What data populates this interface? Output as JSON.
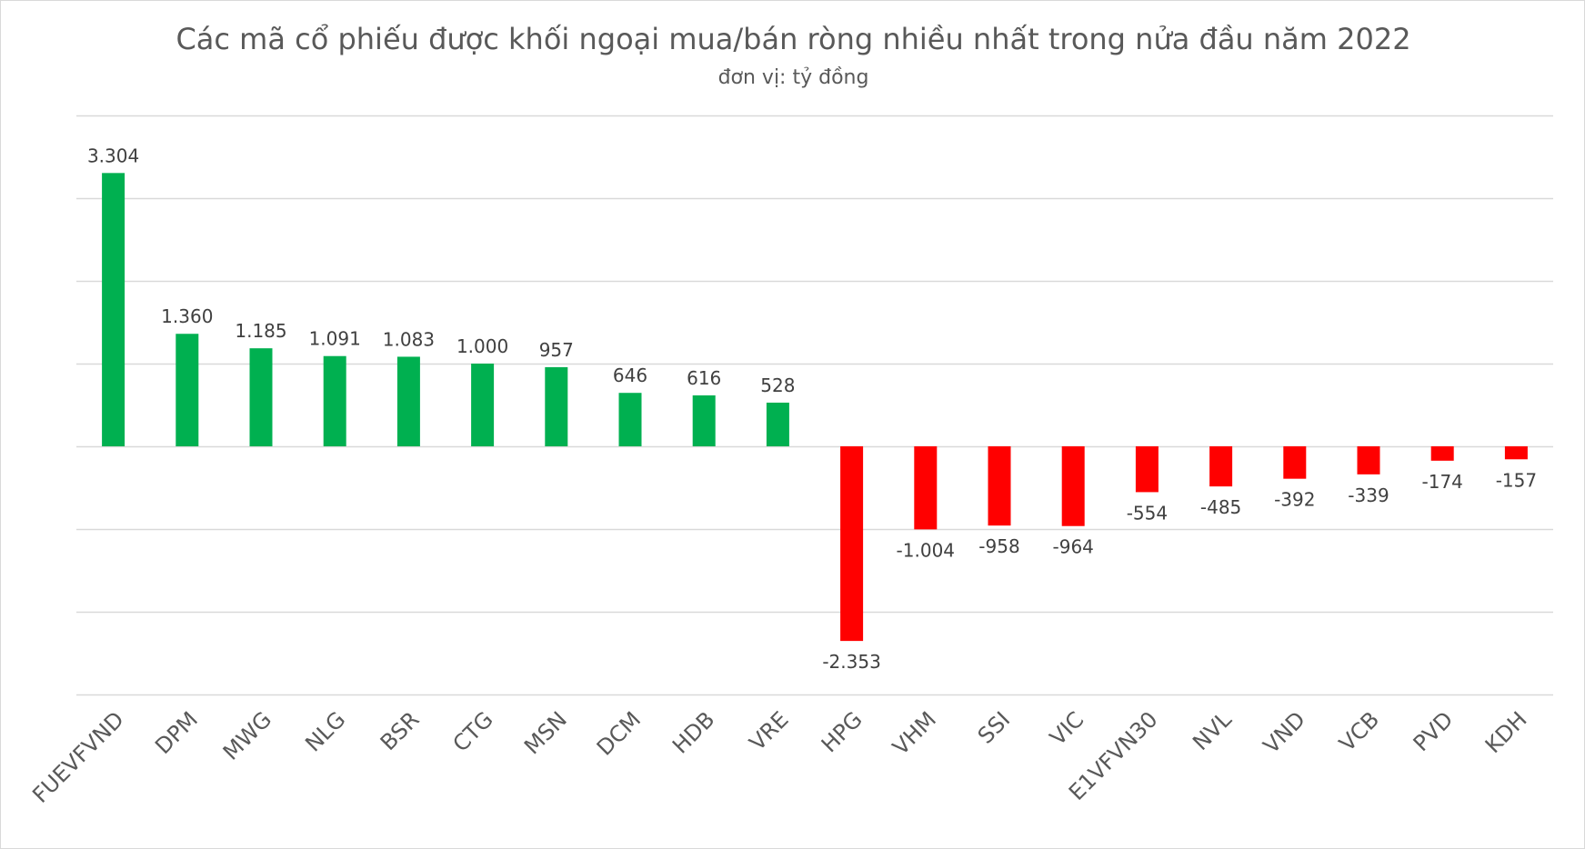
{
  "chart_data": {
    "type": "bar",
    "title": "Các mã cổ phiếu được khối ngoại mua/bán ròng nhiều nhất trong nửa đầu năm 2022",
    "subtitle": "đơn vị: tỷ đồng",
    "xlabel": "",
    "ylabel": "",
    "ylim": [
      -3000,
      4000
    ],
    "grid": true,
    "y_axis_labels_shown": false,
    "categories": [
      "FUEVFVND",
      "DPM",
      "MWG",
      "NLG",
      "BSR",
      "CTG",
      "MSN",
      "DCM",
      "HDB",
      "VRE",
      "HPG",
      "VHM",
      "SSI",
      "VIC",
      "E1VFVN30",
      "NVL",
      "VND",
      "VCB",
      "PVD",
      "KDH"
    ],
    "values": [
      3304,
      1360,
      1185,
      1091,
      1083,
      1000,
      957,
      646,
      616,
      528,
      -2353,
      -1004,
      -958,
      -964,
      -554,
      -485,
      -392,
      -339,
      -174,
      -157
    ],
    "data_labels": [
      "3.304",
      "1.360",
      "1.185",
      "1.091",
      "1.083",
      "1.000",
      "957",
      "646",
      "616",
      "528",
      "-2.353",
      "-1.004",
      "-958",
      "-964",
      "-554",
      "-485",
      "-392",
      "-339",
      "-174",
      "-157"
    ],
    "colors": {
      "positive": "#00B050",
      "negative": "#FF0000",
      "grid": "#d9d9d9",
      "text": "#595959"
    }
  }
}
